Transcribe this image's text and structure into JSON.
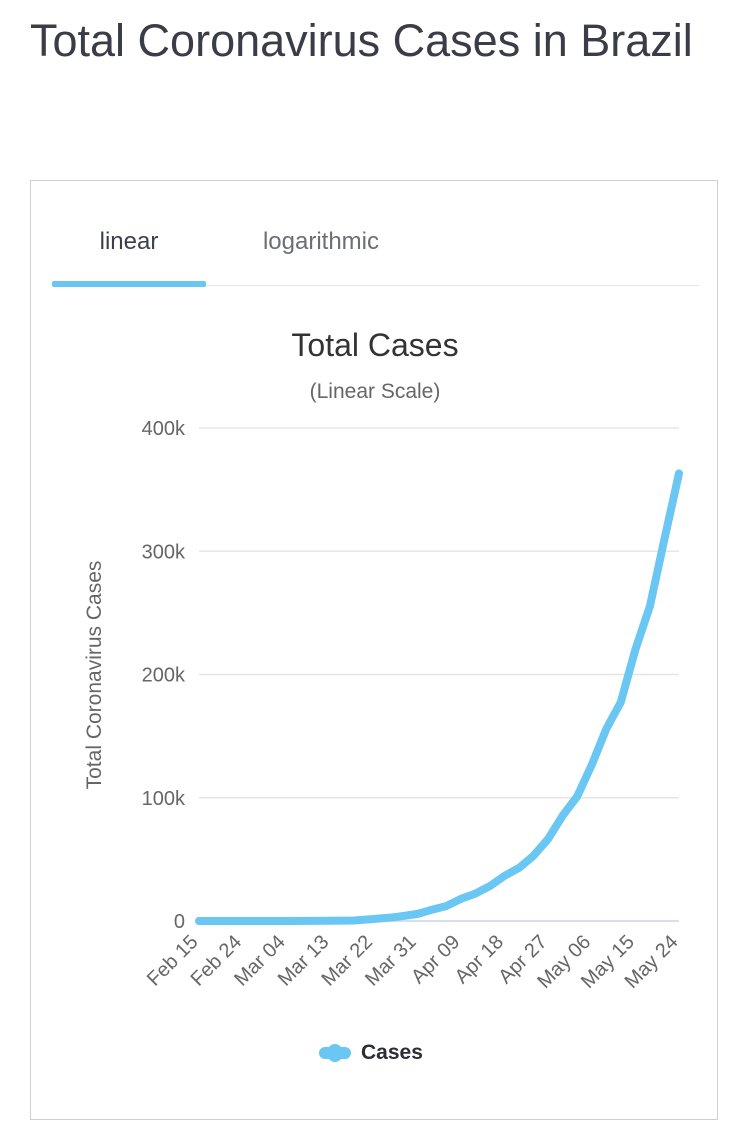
{
  "page": {
    "title": "Total Coronavirus Cases in Brazil"
  },
  "tabs": [
    {
      "label": "linear",
      "active": true
    },
    {
      "label": "logarithmic",
      "active": false
    }
  ],
  "colors": {
    "series": "#6ac6f2",
    "grid": "#e6e6e6",
    "axis": "#ccd6eb",
    "text": "#3b3f4a"
  },
  "chart_data": {
    "type": "line",
    "title": "Total Cases",
    "subtitle": "(Linear Scale)",
    "ylabel": "Total Coronavirus Cases",
    "xlabel": "",
    "ylim": [
      0,
      400000
    ],
    "yticks": [
      0,
      100000,
      200000,
      300000,
      400000
    ],
    "ytick_labels": [
      "0",
      "100k",
      "200k",
      "300k",
      "400k"
    ],
    "xtick_labels": [
      "Feb 15",
      "Feb 24",
      "Mar 04",
      "Mar 13",
      "Mar 22",
      "Mar 31",
      "Apr 09",
      "Apr 18",
      "Apr 27",
      "May 06",
      "May 15",
      "May 24"
    ],
    "grid": true,
    "legend": "bottom-center",
    "series": [
      {
        "name": "Cases",
        "x": [
          "Feb 15",
          "Feb 24",
          "Mar 04",
          "Mar 13",
          "Mar 18",
          "Mar 22",
          "Mar 26",
          "Mar 31",
          "Apr 03",
          "Apr 06",
          "Apr 09",
          "Apr 12",
          "Apr 15",
          "Apr 18",
          "Apr 21",
          "Apr 24",
          "Apr 27",
          "Apr 30",
          "May 03",
          "May 06",
          "May 09",
          "May 12",
          "May 15",
          "May 18",
          "May 21",
          "May 24"
        ],
        "values": [
          0,
          0,
          2,
          150,
          430,
          1600,
          2900,
          5700,
          9100,
          12100,
          17900,
          22200,
          28300,
          36600,
          43100,
          52900,
          66500,
          85400,
          101100,
          126600,
          155900,
          177600,
          220300,
          255400,
          310100,
          363200
        ]
      }
    ]
  }
}
